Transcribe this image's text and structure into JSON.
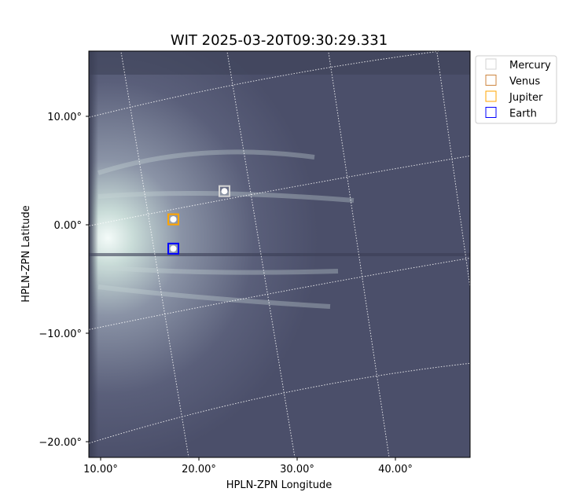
{
  "chart_data": {
    "type": "scatter",
    "title": "WIT 2025-03-20T09:30:29.331",
    "xlabel": "HPLN-ZPN Longitude",
    "ylabel": "HPLN-ZPN Latitude",
    "x_ticks": [
      "10.00°",
      "20.00°",
      "30.00°",
      "40.00°"
    ],
    "x_tick_values": [
      10,
      20,
      30,
      40
    ],
    "y_ticks": [
      "10.00°",
      "0.00°",
      "−10.00°",
      "−20.00°"
    ],
    "y_tick_values": [
      10,
      0,
      -10,
      -20
    ],
    "grid": true,
    "legend_position": "top-right (outside)",
    "series": [
      {
        "name": "Mercury",
        "color": "#d3d3d3",
        "x": 22.6,
        "y": 3.1
      },
      {
        "name": "Venus",
        "color": "#cd853f",
        "x": 17.4,
        "y": 0.5
      },
      {
        "name": "Jupiter",
        "color": "#ffa500",
        "x": 17.4,
        "y": 0.5
      },
      {
        "name": "Earth",
        "color": "#0000ff",
        "x": 17.4,
        "y": -2.2
      }
    ],
    "colormap_background": "#4e5370",
    "colormap_bright": "#e8f2ef"
  }
}
